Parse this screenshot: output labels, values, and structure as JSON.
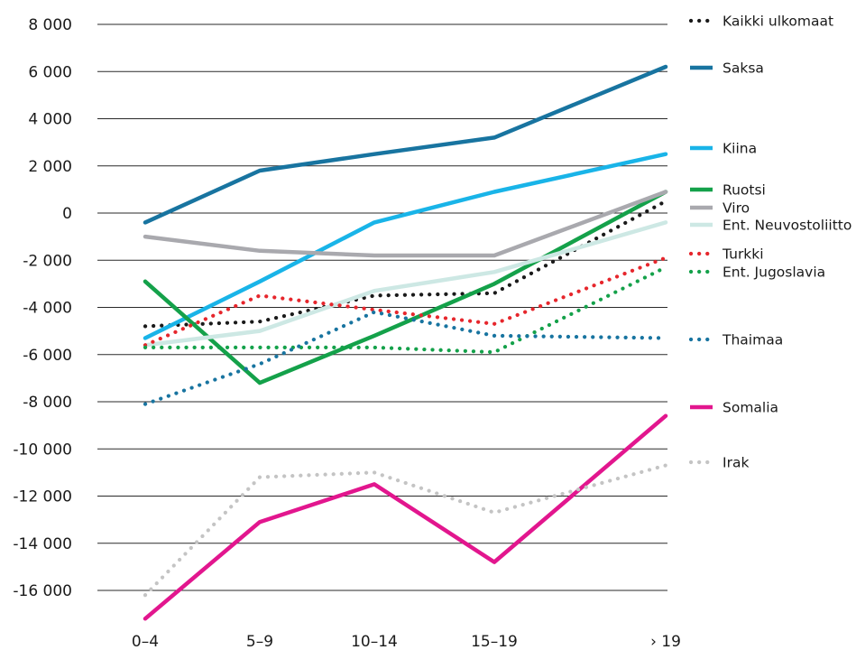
{
  "chart_data": {
    "type": "line",
    "categories": [
      "0–4",
      "5–9",
      "10–14",
      "15–19",
      "› 19"
    ],
    "ylim": [
      -17500,
      8000
    ],
    "yticks": [
      8000,
      6000,
      4000,
      2000,
      0,
      -2000,
      -4000,
      -6000,
      -8000,
      -10000,
      -12000,
      -14000,
      -16000
    ],
    "ytick_labels": [
      "8 000",
      "6 000",
      "4 000",
      "2 000",
      "0",
      "-2 000",
      "-4 000",
      "-6 000",
      "-8 000",
      "-10 000",
      "-12 000",
      "-14 000",
      "-16 000"
    ],
    "grid": true,
    "legend_placement": "right",
    "series": [
      {
        "name": "Kaikki ulkomaat",
        "values": [
          -4800,
          -4600,
          -3500,
          -3400,
          500
        ],
        "color": "#1a1a1a",
        "style": "dotted"
      },
      {
        "name": "Saksa",
        "values": [
          -400,
          1800,
          2500,
          3200,
          6200
        ],
        "color": "#1874a0",
        "style": "solid"
      },
      {
        "name": "Kiina",
        "values": [
          -5300,
          -2900,
          -400,
          900,
          2500
        ],
        "color": "#19b4e8",
        "style": "solid"
      },
      {
        "name": "Ruotsi",
        "values": [
          -2900,
          -7200,
          -5200,
          -3000,
          900
        ],
        "color": "#14a14a",
        "style": "solid"
      },
      {
        "name": "Viro",
        "values": [
          -1000,
          -1600,
          -1800,
          -1800,
          900
        ],
        "color": "#a9a9ae",
        "style": "solid"
      },
      {
        "name": "Ent. Neuvostoliitto",
        "values": [
          -5600,
          -5000,
          -3300,
          -2500,
          -400
        ],
        "color": "#cde8e4",
        "style": "solid"
      },
      {
        "name": "Turkki",
        "values": [
          -5600,
          -3500,
          -4100,
          -4700,
          -1900
        ],
        "color": "#e6262c",
        "style": "dotted"
      },
      {
        "name": "Ent. Jugoslavia",
        "values": [
          -5700,
          -5700,
          -5700,
          -5900,
          -2300
        ],
        "color": "#14a14a",
        "style": "dotted"
      },
      {
        "name": "Thaimaa",
        "values": [
          -8100,
          -6400,
          -4200,
          -5200,
          -5300
        ],
        "color": "#1874a0",
        "style": "dotted"
      },
      {
        "name": "Somalia",
        "values": [
          -17200,
          -13100,
          -11500,
          -14800,
          -8600
        ],
        "color": "#e2168e",
        "style": "solid"
      },
      {
        "name": "Irak",
        "values": [
          -16200,
          -11200,
          -11000,
          -12700,
          -10700
        ],
        "color": "#c4c4c4",
        "style": "dotted"
      }
    ]
  }
}
